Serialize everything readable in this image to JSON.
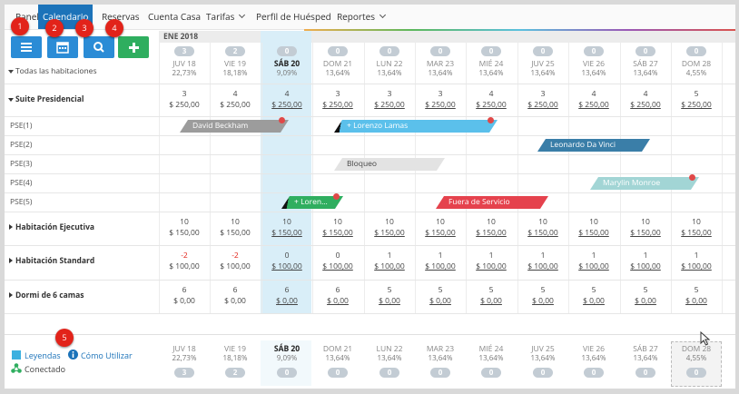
{
  "nav": [
    "Panel",
    "Calendario",
    "Reservas",
    "Cuenta Casa",
    "Tarifas",
    "Perfil de Huésped",
    "Reportes"
  ],
  "markers": [
    "1",
    "2",
    "3",
    "4",
    "5"
  ],
  "month": "ENE 2018",
  "all_rooms": "Todas las habitaciones",
  "days": [
    {
      "label": "JUV 18",
      "occupancy": "22,73%",
      "badge": "3"
    },
    {
      "label": "VIE 19",
      "occupancy": "18,18%",
      "badge": "2"
    },
    {
      "label": "SÁB 20",
      "occupancy": "9,09%",
      "badge": "0"
    },
    {
      "label": "DOM 21",
      "occupancy": "13,64%",
      "badge": "0"
    },
    {
      "label": "LUN 22",
      "occupancy": "13,64%",
      "badge": "0"
    },
    {
      "label": "MAR 23",
      "occupancy": "13,64%",
      "badge": "0"
    },
    {
      "label": "MIÉ 24",
      "occupancy": "13,64%",
      "badge": "0"
    },
    {
      "label": "JUV 25",
      "occupancy": "13,64%",
      "badge": "0"
    },
    {
      "label": "VIE 26",
      "occupancy": "13,64%",
      "badge": "0"
    },
    {
      "label": "SÁB 27",
      "occupancy": "13,64%",
      "badge": "0"
    },
    {
      "label": "DOM 28",
      "occupancy": "4,55%",
      "badge": "0"
    }
  ],
  "room_types": [
    {
      "name": "Suite Presidencial",
      "counts": [
        "3",
        "4",
        "4",
        "3",
        "3",
        "3",
        "4",
        "3",
        "4",
        "4",
        "5"
      ],
      "prices": [
        "$ 250,00",
        "$ 250,00",
        "$ 250,00",
        "$ 250,00",
        "$ 250,00",
        "$ 250,00",
        "$ 250,00",
        "$ 250,00",
        "$ 250,00",
        "$ 250,00",
        "$ 250,00"
      ],
      "rooms": [
        "PSE(1)",
        "PSE(2)",
        "PSE(3)",
        "PSE(4)",
        "PSE(5)"
      ]
    },
    {
      "name": "Habitación Ejecutiva",
      "counts": [
        "10",
        "10",
        "10",
        "10",
        "10",
        "10",
        "10",
        "10",
        "10",
        "10",
        "10"
      ],
      "prices": [
        "$ 150,00",
        "$ 150,00",
        "$ 150,00",
        "$ 150,00",
        "$ 150,00",
        "$ 150,00",
        "$ 150,00",
        "$ 150,00",
        "$ 150,00",
        "$ 150,00",
        "$ 150,00"
      ]
    },
    {
      "name": "Habitación Standard",
      "counts": [
        "-2",
        "-2",
        "0",
        "0",
        "1",
        "1",
        "1",
        "1",
        "1",
        "1",
        "1"
      ],
      "prices": [
        "$ 100,00",
        "$ 100,00",
        "$ 100,00",
        "$ 100,00",
        "$ 100,00",
        "$ 100,00",
        "$ 100,00",
        "$ 100,00",
        "$ 100,00",
        "$ 100,00",
        "$ 100,00"
      ]
    },
    {
      "name": "Dormi de 6 camas",
      "counts": [
        "6",
        "6",
        "6",
        "6",
        "5",
        "5",
        "5",
        "5",
        "5",
        "5",
        "5"
      ],
      "prices": [
        "$ 0,00",
        "$ 0,00",
        "$ 0,00",
        "$ 0,00",
        "$ 0,00",
        "$ 0,00",
        "$ 0,00",
        "$ 0,00",
        "$ 0,00",
        "$ 0,00",
        "$ 0,00"
      ]
    }
  ],
  "bookings": [
    {
      "label": "David Beckham"
    },
    {
      "label": "+ Lorenzo Lamas"
    },
    {
      "label": "Leonardo Da Vinci"
    },
    {
      "label": "Bloqueo"
    },
    {
      "label": "Marylin Monroe"
    },
    {
      "label": "+ Loren..."
    },
    {
      "label": "Fuera de Servicio"
    }
  ],
  "footer": {
    "legend": "Leyendas",
    "help": "Cómo Utilizar",
    "status": "Conectado"
  }
}
